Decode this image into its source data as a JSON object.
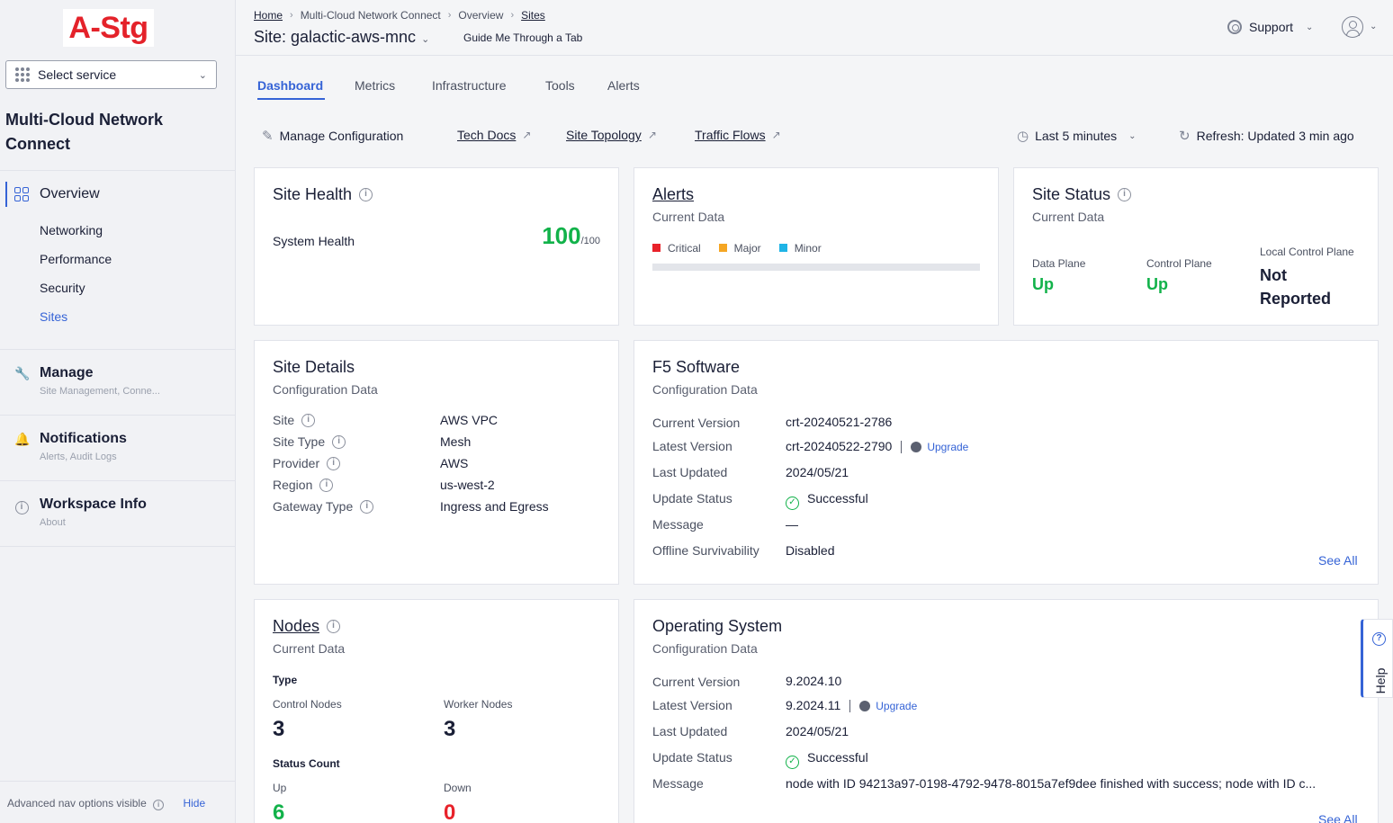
{
  "sidebar": {
    "logo_text": "A-Stg",
    "select_service": "Select service",
    "app_title": "Multi-Cloud Network Connect",
    "overview_label": "Overview",
    "overview_items": [
      {
        "label": "Networking"
      },
      {
        "label": "Performance"
      },
      {
        "label": "Security"
      },
      {
        "label": "Sites"
      }
    ],
    "sections": [
      {
        "title": "Manage",
        "subtitle": "Site Management, Conne..."
      },
      {
        "title": "Notifications",
        "subtitle": "Alerts, Audit Logs"
      },
      {
        "title": "Workspace Info",
        "subtitle": "About"
      }
    ],
    "footer_text": "Advanced nav options visible",
    "footer_hide": "Hide"
  },
  "header": {
    "breadcrumb": [
      "Home",
      "Multi-Cloud Network Connect",
      "Overview",
      "Sites"
    ],
    "site_title": "Site: galactic-aws-mnc",
    "guide": "Guide Me Through a Tab",
    "support": "Support"
  },
  "tabs": [
    "Dashboard",
    "Metrics",
    "Infrastructure",
    "Tools",
    "Alerts"
  ],
  "actions": {
    "manage_config": "Manage Configuration",
    "tech_docs": "Tech Docs",
    "site_topology": "Site Topology",
    "traffic_flows": "Traffic Flows",
    "time_range": "Last 5 minutes",
    "refresh": "Refresh: Updated 3 min ago"
  },
  "site_health": {
    "title": "Site Health",
    "label": "System Health",
    "score": "100",
    "max": "/100"
  },
  "alerts": {
    "title": "Alerts",
    "subtitle": "Current Data",
    "legend": [
      {
        "label": "Critical",
        "color": "#e8222a"
      },
      {
        "label": "Major",
        "color": "#f5a623"
      },
      {
        "label": "Minor",
        "color": "#1fb4e6"
      }
    ]
  },
  "site_status": {
    "title": "Site Status",
    "subtitle": "Current Data",
    "data_plane_label": "Data Plane",
    "data_plane_value": "Up",
    "control_plane_label": "Control Plane",
    "control_plane_value": "Up",
    "local_cp_label": "Local Control Plane",
    "local_cp_value_1": "Not",
    "local_cp_value_2": "Reported"
  },
  "site_details": {
    "title": "Site Details",
    "subtitle": "Configuration Data",
    "rows": [
      {
        "label": "Site",
        "value": "AWS VPC"
      },
      {
        "label": "Site Type",
        "value": "Mesh"
      },
      {
        "label": "Provider",
        "value": "AWS"
      },
      {
        "label": "Region",
        "value": "us-west-2"
      },
      {
        "label": "Gateway Type",
        "value": "Ingress and Egress"
      }
    ]
  },
  "f5_software": {
    "title": "F5 Software",
    "subtitle": "Configuration Data",
    "current_version_label": "Current Version",
    "current_version": "crt-20240521-2786",
    "latest_version_label": "Latest Version",
    "latest_version": "crt-20240522-2790",
    "upgrade": "Upgrade",
    "last_updated_label": "Last Updated",
    "last_updated": "2024/05/21",
    "update_status_label": "Update Status",
    "update_status": "Successful",
    "message_label": "Message",
    "message": "—",
    "offline_label": "Offline Survivability",
    "offline": "Disabled",
    "see_all": "See All"
  },
  "nodes": {
    "title": "Nodes",
    "subtitle": "Current Data",
    "type_label": "Type",
    "control_nodes_label": "Control Nodes",
    "control_nodes": "3",
    "worker_nodes_label": "Worker Nodes",
    "worker_nodes": "3",
    "status_count_label": "Status Count",
    "up_label": "Up",
    "up": "6",
    "down_label": "Down",
    "down": "0"
  },
  "operating_system": {
    "title": "Operating System",
    "subtitle": "Configuration Data",
    "current_version_label": "Current Version",
    "current_version": "9.2024.10",
    "latest_version_label": "Latest Version",
    "latest_version": "9.2024.11",
    "upgrade": "Upgrade",
    "last_updated_label": "Last Updated",
    "last_updated": "2024/05/21",
    "update_status_label": "Update Status",
    "update_status": "Successful",
    "message_label": "Message",
    "message": "node with ID 94213a97-0198-4792-9478-8015a7ef9dee finished with success; node with ID c...",
    "see_all": "See All"
  },
  "help": {
    "label": "Help"
  },
  "colors": {
    "accent": "#3563d6",
    "success": "#12b24a",
    "danger": "#e8222a"
  }
}
